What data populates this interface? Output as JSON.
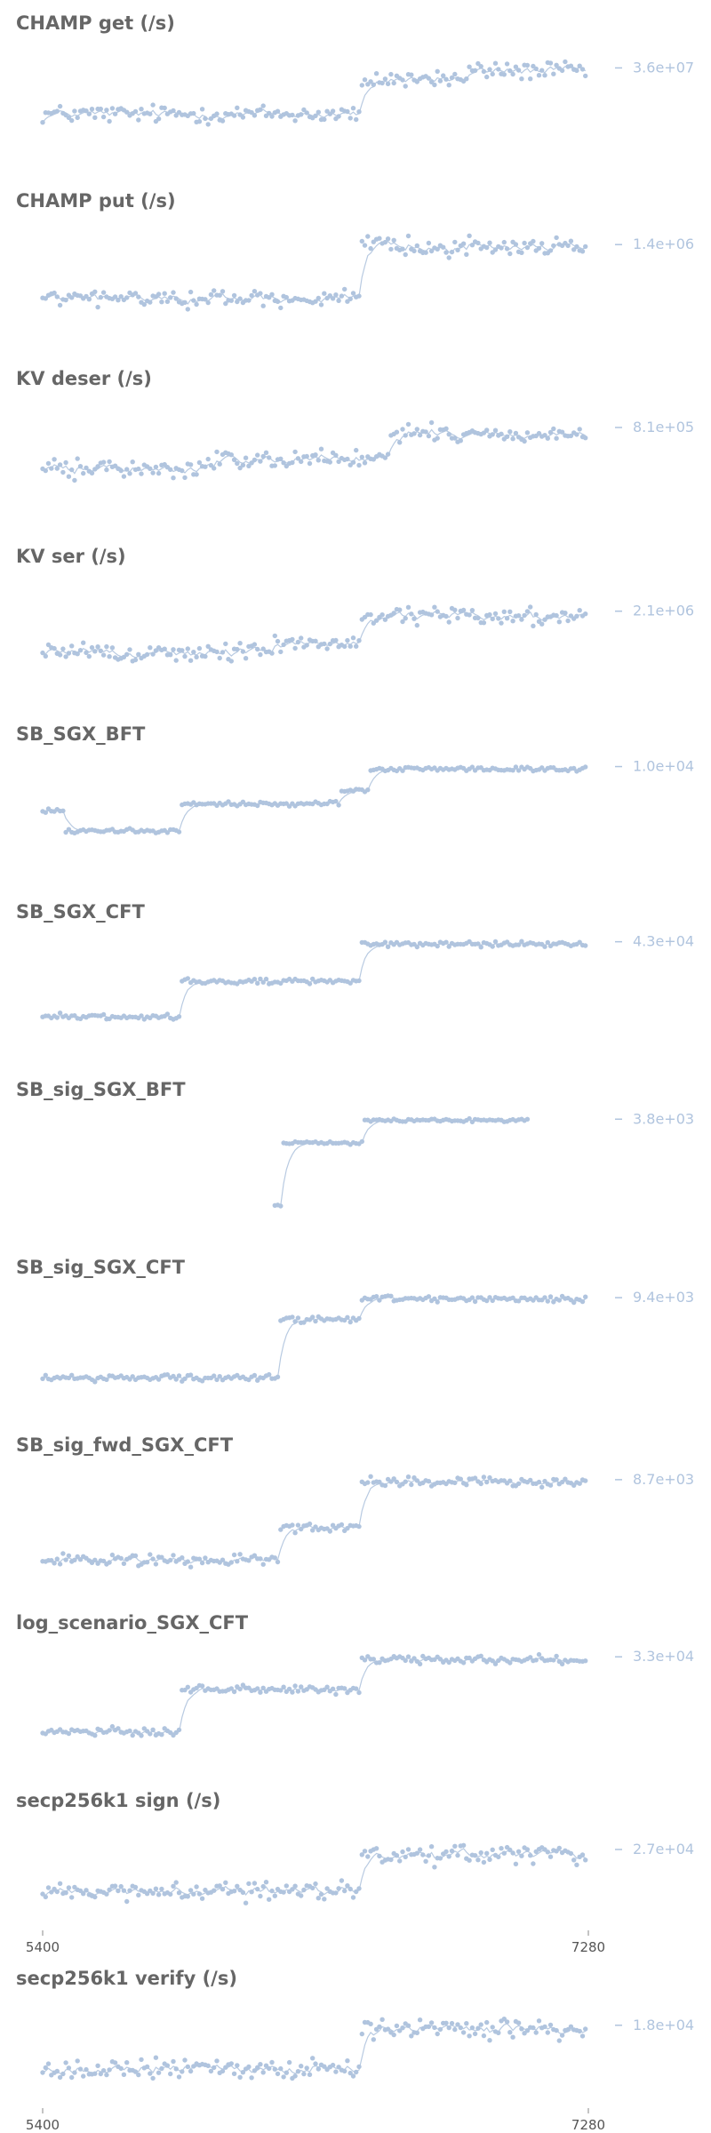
{
  "colors": {
    "points": "#b0c4de",
    "smooth": "#b0c4de",
    "title": "#666666",
    "tick_text": "#555555",
    "axis": "#888888"
  },
  "chart_data": [
    {
      "type": "scatter",
      "title": "CHAMP get (/s)",
      "xlim": [
        5400,
        7280
      ],
      "ref_label": "3.6e+07",
      "ylim": [
        0.7,
        1.08
      ],
      "x_start": 5400,
      "x_step": 10,
      "segments": [
        {
          "n": 110,
          "base": 0.83
        },
        {
          "n": 5,
          "base": 0.93
        },
        {
          "n": 32,
          "base": 0.96
        },
        {
          "n": 41,
          "base": 0.99
        }
      ],
      "noise": 0.025,
      "show_x_ticks": false
    },
    {
      "type": "scatter",
      "title": "CHAMP put (/s)",
      "xlim": [
        5400,
        7280
      ],
      "ref_label": "1.4e+06",
      "ylim": [
        0.6,
        1.1
      ],
      "x_start": 5400,
      "x_step": 10,
      "segments": [
        {
          "n": 110,
          "base": 0.74
        },
        {
          "n": 78,
          "base": 0.99
        }
      ],
      "noise": 0.03,
      "show_x_ticks": false
    },
    {
      "type": "scatter",
      "title": "KV deser (/s)",
      "xlim": [
        5400,
        7280
      ],
      "ref_label": "8.1e+05",
      "ylim": [
        0.55,
        1.15
      ],
      "x_start": 5400,
      "x_step": 10,
      "segments": [
        {
          "n": 60,
          "base": 0.76
        },
        {
          "n": 60,
          "base": 0.82
        },
        {
          "n": 68,
          "base": 0.96
        }
      ],
      "noise": 0.04,
      "show_x_ticks": false
    },
    {
      "type": "scatter",
      "title": "KV ser (/s)",
      "xlim": [
        5400,
        7280
      ],
      "ref_label": "2.1e+06",
      "ylim": [
        0.55,
        1.2
      ],
      "x_start": 5400,
      "x_step": 10,
      "segments": [
        {
          "n": 80,
          "base": 0.74
        },
        {
          "n": 30,
          "base": 0.8
        },
        {
          "n": 78,
          "base": 0.97
        }
      ],
      "noise": 0.045,
      "show_x_ticks": false
    },
    {
      "type": "scatter",
      "title": "SB_SGX_BFT",
      "xlim": [
        5400,
        7280
      ],
      "ref_label": "1.0e+04",
      "ylim": [
        0.2,
        1.08
      ],
      "x_start": 5400,
      "x_step": 10,
      "segments": [
        {
          "n": 8,
          "base": 0.62
        },
        {
          "n": 40,
          "base": 0.45
        },
        {
          "n": 55,
          "base": 0.68
        },
        {
          "n": 10,
          "base": 0.8
        },
        {
          "n": 75,
          "base": 0.98
        }
      ],
      "noise": 0.015,
      "show_x_ticks": false
    },
    {
      "type": "scatter",
      "title": "SB_SGX_CFT",
      "xlim": [
        5400,
        7280
      ],
      "ref_label": "4.3e+04",
      "ylim": [
        0.15,
        1.06
      ],
      "x_start": 5400,
      "x_step": 10,
      "segments": [
        {
          "n": 48,
          "base": 0.34
        },
        {
          "n": 62,
          "base": 0.65
        },
        {
          "n": 78,
          "base": 0.98
        }
      ],
      "noise": 0.018,
      "show_x_ticks": false
    },
    {
      "type": "scatter",
      "title": "SB_sig_SGX_BFT",
      "xlim": [
        5400,
        7280
      ],
      "ref_label": "3.8e+03",
      "ylim": [
        0.1,
        1.06
      ],
      "x_start": 6200,
      "x_step": 10,
      "segments": [
        {
          "n": 3,
          "base": 0.2
        },
        {
          "n": 28,
          "base": 0.78
        },
        {
          "n": 57,
          "base": 0.99
        }
      ],
      "noise": 0.012,
      "show_x_ticks": false
    },
    {
      "type": "scatter",
      "title": "SB_sig_SGX_CFT",
      "xlim": [
        5400,
        7280
      ],
      "ref_label": "9.4e+03",
      "ylim": [
        0.2,
        1.06
      ],
      "x_start": 5400,
      "x_step": 10,
      "segments": [
        {
          "n": 82,
          "base": 0.33
        },
        {
          "n": 28,
          "base": 0.82
        },
        {
          "n": 78,
          "base": 0.99
        }
      ],
      "noise": 0.02,
      "show_x_ticks": false
    },
    {
      "type": "scatter",
      "title": "SB_sig_fwd_SGX_CFT",
      "xlim": [
        5400,
        7280
      ],
      "ref_label": "8.7e+03",
      "ylim": [
        0.2,
        1.1
      ],
      "x_start": 5400,
      "x_step": 10,
      "segments": [
        {
          "n": 82,
          "base": 0.3
        },
        {
          "n": 28,
          "base": 0.58
        },
        {
          "n": 78,
          "base": 0.98
        }
      ],
      "noise": 0.035,
      "show_x_ticks": false
    },
    {
      "type": "scatter",
      "title": "log_scenario_SGX_CFT",
      "xlim": [
        5400,
        7280
      ],
      "ref_label": "3.3e+04",
      "ylim": [
        0.15,
        1.1
      ],
      "x_start": 5400,
      "x_step": 10,
      "segments": [
        {
          "n": 48,
          "base": 0.31
        },
        {
          "n": 62,
          "base": 0.7
        },
        {
          "n": 78,
          "base": 0.97
        }
      ],
      "noise": 0.03,
      "show_x_ticks": false
    },
    {
      "type": "scatter",
      "title": "secp256k1 sign (/s)",
      "xlim": [
        5400,
        7280
      ],
      "ref_label": "2.7e+04",
      "ylim": [
        0.55,
        1.15
      ],
      "x_start": 5400,
      "x_step": 10,
      "segments": [
        {
          "n": 110,
          "base": 0.76
        },
        {
          "n": 78,
          "base": 0.97
        }
      ],
      "noise": 0.04,
      "show_x_ticks": true,
      "x_ticks": [
        5400,
        7280
      ]
    },
    {
      "type": "scatter",
      "title": "secp256k1 verify (/s)",
      "xlim": [
        5400,
        7280
      ],
      "ref_label": "1.8e+04",
      "ylim": [
        0.6,
        1.12
      ],
      "x_start": 5400,
      "x_step": 10,
      "segments": [
        {
          "n": 110,
          "base": 0.78
        },
        {
          "n": 78,
          "base": 0.98
        }
      ],
      "noise": 0.035,
      "show_x_ticks": true,
      "x_ticks": [
        5400,
        7280
      ]
    }
  ]
}
